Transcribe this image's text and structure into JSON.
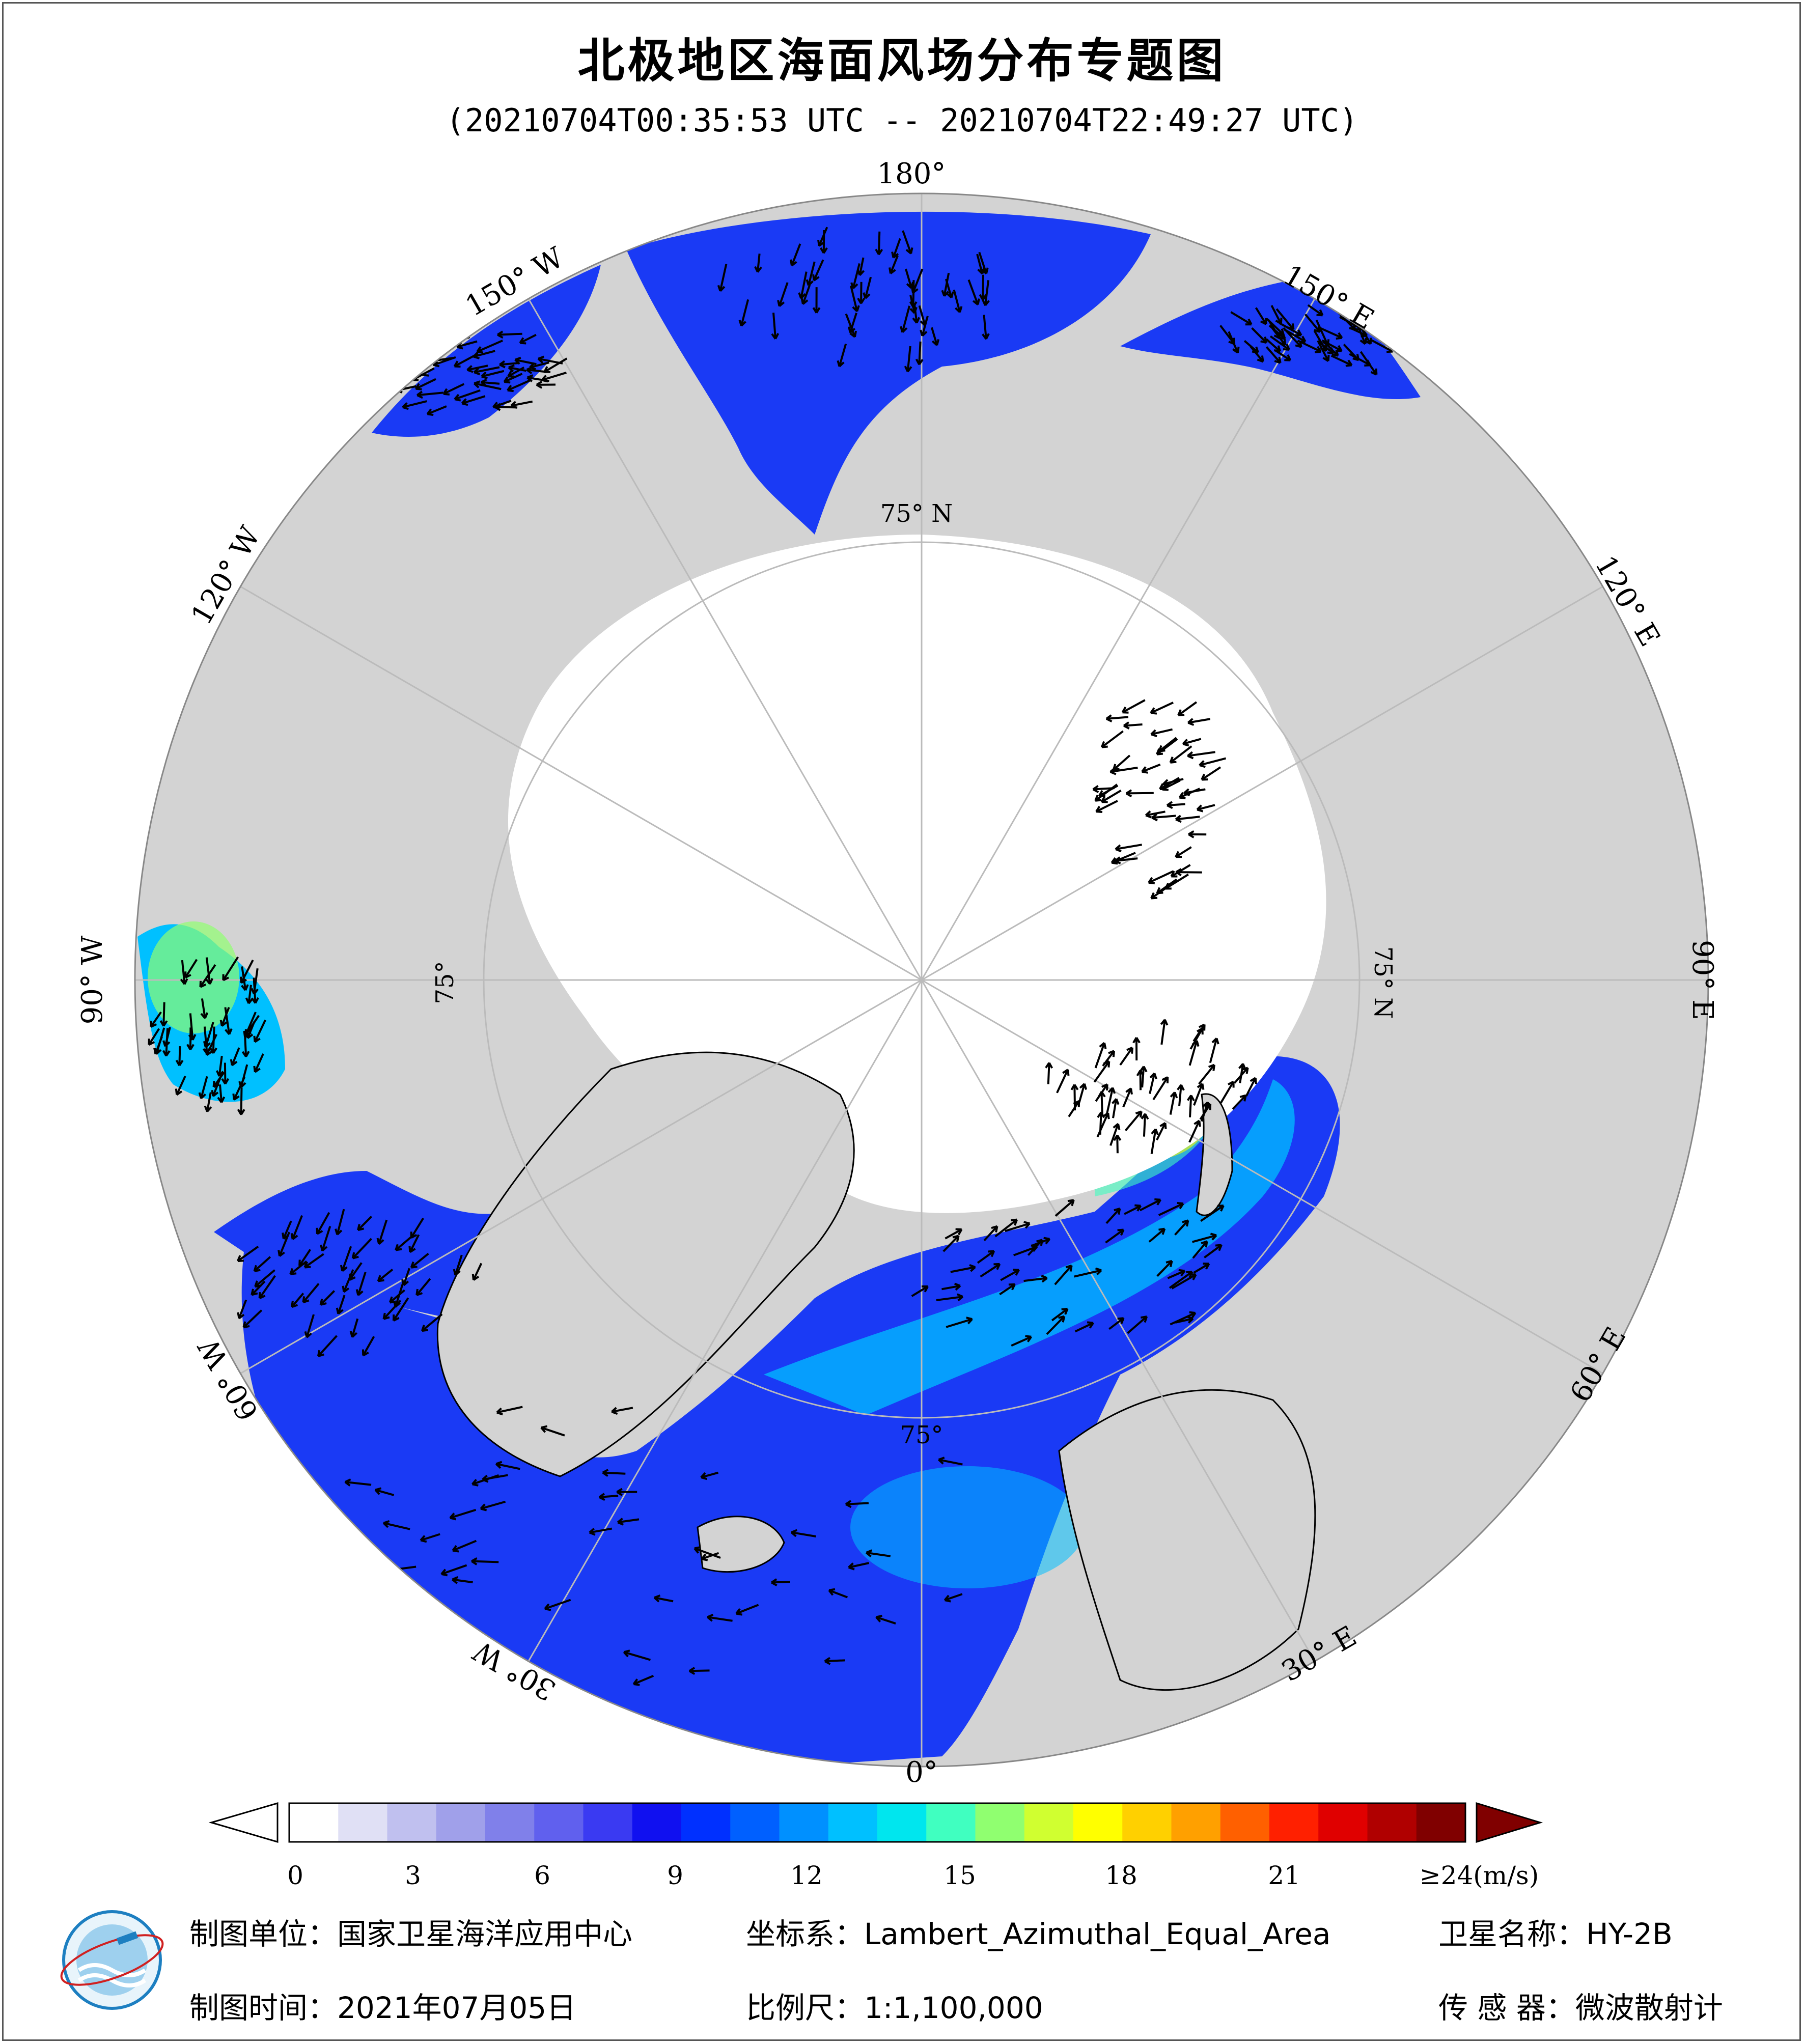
{
  "title": "北极地区海面风场分布专题图",
  "subtitle": "(20210704T00:35:53 UTC -- 20210704T22:49:27 UTC)",
  "map": {
    "projection_note": "polar view centred on the North Pole",
    "longitude_labels": [
      "180°",
      "150° E",
      "120° E",
      "90° E",
      "60° E",
      "30° E",
      "0°",
      "30° W",
      "60° W",
      "90° W",
      "120° W",
      "150° W"
    ],
    "latitude_labels": [
      "75° N",
      "75° N",
      "75°",
      "75°"
    ],
    "colors": {
      "land": "#d3d3d3",
      "ice": "#ffffff",
      "coast": "#000000"
    }
  },
  "colorbar": {
    "unit_label": "≥24(m/s)",
    "ticks": [
      "0",
      "3",
      "6",
      "9",
      "12",
      "15",
      "18",
      "21"
    ],
    "range": [
      0,
      24
    ],
    "colors": [
      "#ffffff",
      "#e0e0f5",
      "#c0c0ef",
      "#a0a0ea",
      "#8080ea",
      "#6060ee",
      "#3a3af2",
      "#1010f0",
      "#0030ff",
      "#0060ff",
      "#0090ff",
      "#00c0ff",
      "#00e6ee",
      "#40ffc0",
      "#90ff70",
      "#d0ff30",
      "#ffff00",
      "#ffd000",
      "#ffa000",
      "#ff6000",
      "#ff2000",
      "#e00000",
      "#b00000",
      "#800000"
    ]
  },
  "footer": {
    "unit": "制图单位：国家卫星海洋应用中心",
    "date": "制图时间：2021年07月05日",
    "coords": "坐标系：Lambert_Azimuthal_Equal_Area",
    "scale": "比例尺：1:1,100,000",
    "satellite": "卫星名称：HY-2B",
    "sensor": "传 感 器：微波散射计"
  }
}
